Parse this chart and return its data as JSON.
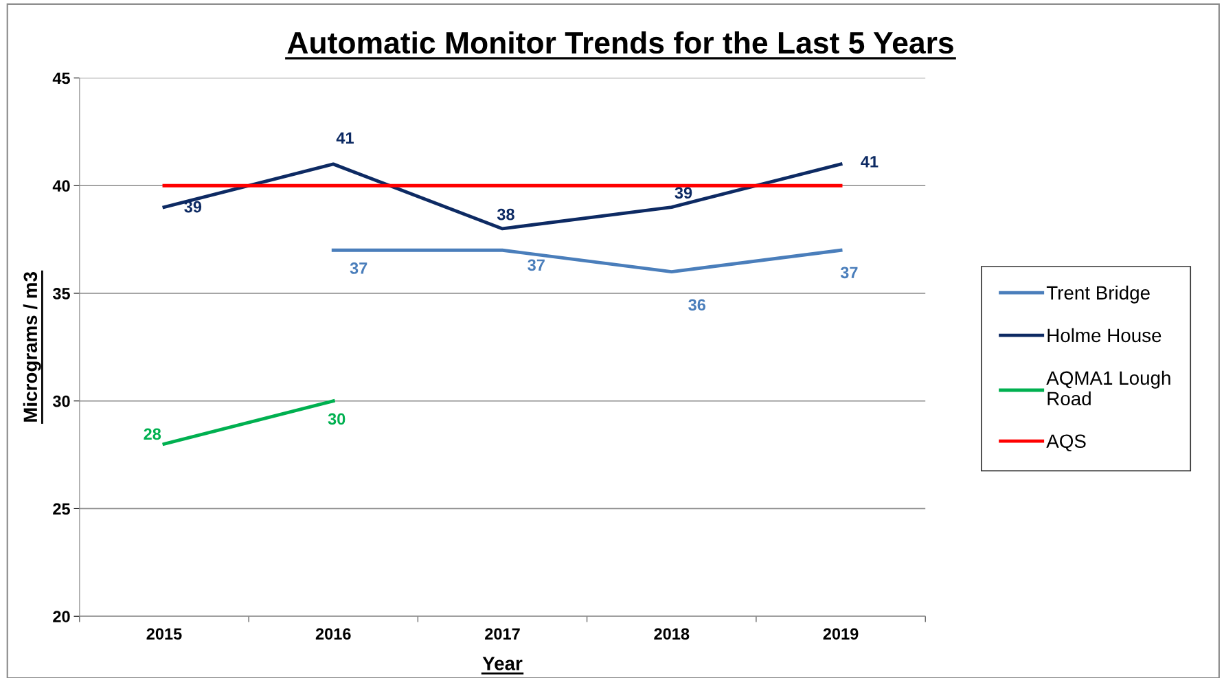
{
  "chart_data": {
    "type": "line",
    "title": "Automatic Monitor Trends for the Last 5 Years",
    "xlabel": "Year",
    "ylabel": "Micrograms / m3",
    "categories": [
      "2015",
      "2016",
      "2017",
      "2018",
      "2019"
    ],
    "series": [
      {
        "name": "Trent Bridge",
        "color": "#4a7ebb",
        "values": [
          null,
          37,
          37,
          36,
          37
        ],
        "value_labels": [
          null,
          "37",
          "37",
          "36",
          "37"
        ]
      },
      {
        "name": "Holme House",
        "color": "#0d2a63",
        "values": [
          39,
          41,
          38,
          39,
          41
        ],
        "value_labels": [
          "39",
          "41",
          "38",
          "39",
          "41"
        ]
      },
      {
        "name": "AQMA1 Lough Road",
        "color": "#00b050",
        "values": [
          28,
          30,
          null,
          null,
          null
        ],
        "value_labels": [
          "28",
          "30",
          null,
          null,
          null
        ]
      },
      {
        "name": "AQS",
        "color": "#ff0000",
        "values": [
          40,
          40,
          40,
          40,
          40
        ]
      }
    ],
    "ylim": [
      20,
      45
    ],
    "yticks": [
      20,
      25,
      30,
      35,
      40,
      45
    ],
    "grid": "y",
    "legend": "right",
    "marker": "none",
    "line_style": "solid"
  }
}
